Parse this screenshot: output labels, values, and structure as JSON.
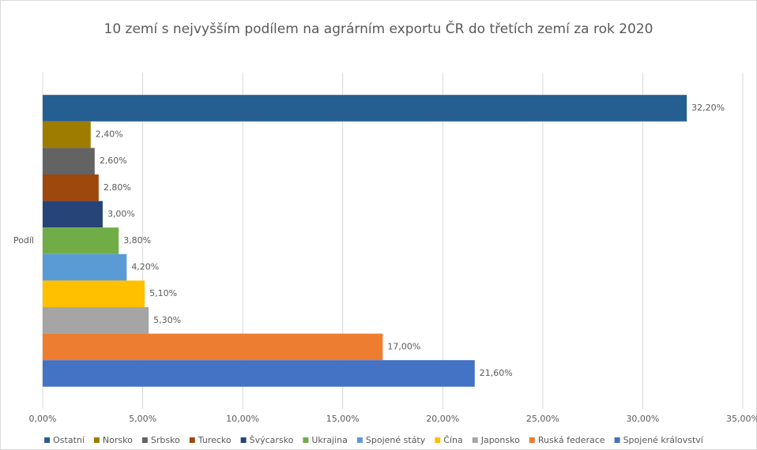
{
  "chart_data": {
    "type": "bar",
    "orientation": "horizontal",
    "title": "10 zemí s nejvyšším podílem na agrárním exportu ČR do třetích zemí za rok 2020",
    "categories": [
      "Podíl"
    ],
    "series": [
      {
        "name": "Ostatní",
        "color": "#255e91",
        "values": [
          32.2
        ],
        "value_labels": [
          "32,20%"
        ]
      },
      {
        "name": "Norsko",
        "color": "#9e7c00",
        "values": [
          2.4
        ],
        "value_labels": [
          "2,40%"
        ]
      },
      {
        "name": "Srbsko",
        "color": "#636363",
        "values": [
          2.6
        ],
        "value_labels": [
          "2,60%"
        ]
      },
      {
        "name": "Turecko",
        "color": "#9e480e",
        "values": [
          2.8
        ],
        "value_labels": [
          "2,80%"
        ]
      },
      {
        "name": "Švýcarsko",
        "color": "#264478",
        "values": [
          3.0
        ],
        "value_labels": [
          "3,00%"
        ]
      },
      {
        "name": "Ukrajina",
        "color": "#70ad47",
        "values": [
          3.8
        ],
        "value_labels": [
          "3,80%"
        ]
      },
      {
        "name": "Spojené státy",
        "color": "#5b9bd5",
        "values": [
          4.2
        ],
        "value_labels": [
          "4,20%"
        ]
      },
      {
        "name": "Čína",
        "color": "#ffc000",
        "values": [
          5.1
        ],
        "value_labels": [
          "5,10%"
        ]
      },
      {
        "name": "Japonsko",
        "color": "#a5a5a5",
        "values": [
          5.3
        ],
        "value_labels": [
          "5,30%"
        ]
      },
      {
        "name": "Ruská federace",
        "color": "#ed7d31",
        "values": [
          17.0
        ],
        "value_labels": [
          "17,00%"
        ]
      },
      {
        "name": "Spojené království",
        "color": "#4472c4",
        "values": [
          21.6
        ],
        "value_labels": [
          "21,60%"
        ]
      }
    ],
    "xlim": [
      0,
      35
    ],
    "xticks": [
      {
        "value": 0,
        "label": "0,00%"
      },
      {
        "value": 5,
        "label": "5,00%"
      },
      {
        "value": 10,
        "label": "10,00%"
      },
      {
        "value": 15,
        "label": "15,00%"
      },
      {
        "value": 20,
        "label": "20,00%"
      },
      {
        "value": 25,
        "label": "25,00%"
      },
      {
        "value": 30,
        "label": "30,00%"
      },
      {
        "value": 35,
        "label": "35,00%"
      }
    ],
    "grid": true,
    "legend": "bottom"
  }
}
